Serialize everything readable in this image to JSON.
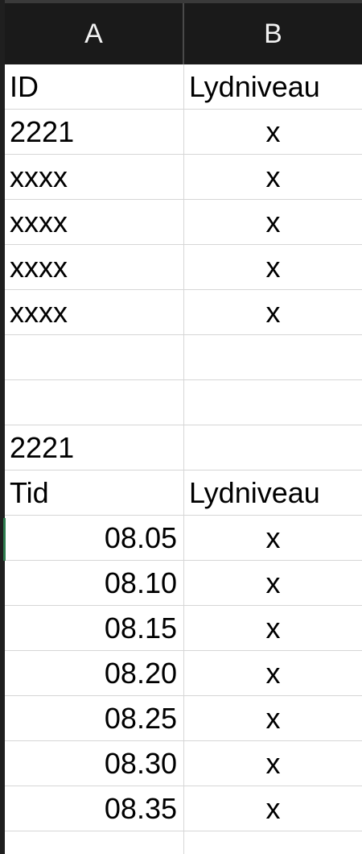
{
  "columns": [
    "A",
    "B"
  ],
  "rows": [
    {
      "a": "ID",
      "b": "Lydniveau",
      "a_align": "left",
      "b_align": "left"
    },
    {
      "a": "2221",
      "b": "x",
      "a_align": "left",
      "b_align": "center"
    },
    {
      "a": "xxxx",
      "b": "x",
      "a_align": "left",
      "b_align": "center"
    },
    {
      "a": "xxxx",
      "b": "x",
      "a_align": "left",
      "b_align": "center"
    },
    {
      "a": "xxxx",
      "b": "x",
      "a_align": "left",
      "b_align": "center"
    },
    {
      "a": "xxxx",
      "b": "x",
      "a_align": "left",
      "b_align": "center"
    },
    {
      "a": "",
      "b": "",
      "a_align": "left",
      "b_align": "center"
    },
    {
      "a": "",
      "b": "",
      "a_align": "left",
      "b_align": "center"
    },
    {
      "a": "2221",
      "b": "",
      "a_align": "left",
      "b_align": "center"
    },
    {
      "a": "Tid",
      "b": "Lydniveau",
      "a_align": "left",
      "b_align": "left"
    },
    {
      "a": "08.05",
      "b": "x",
      "a_align": "right",
      "b_align": "center"
    },
    {
      "a": "08.10",
      "b": "x",
      "a_align": "right",
      "b_align": "center"
    },
    {
      "a": "08.15",
      "b": "x",
      "a_align": "right",
      "b_align": "center"
    },
    {
      "a": "08.20",
      "b": "x",
      "a_align": "right",
      "b_align": "center"
    },
    {
      "a": "08.25",
      "b": "x",
      "a_align": "right",
      "b_align": "center"
    },
    {
      "a": "08.30",
      "b": "x",
      "a_align": "right",
      "b_align": "center"
    },
    {
      "a": "08.35",
      "b": "x",
      "a_align": "right",
      "b_align": "center"
    },
    {
      "a": "",
      "b": "",
      "a_align": "left",
      "b_align": "center"
    }
  ],
  "colors": {
    "header_bg": "#1a1a1a",
    "header_text": "#f2f2f2",
    "gridline": "#d6d6d6",
    "active_cell_marker": "#2e7d4f"
  }
}
